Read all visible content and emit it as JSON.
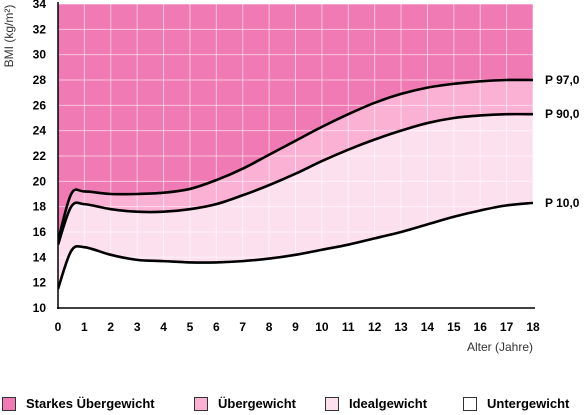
{
  "chart_data": {
    "type": "line",
    "title": "",
    "xlabel": "Alter (Jahre)",
    "ylabel": "BMI (kg/m²)",
    "x": [
      0,
      0.5,
      1,
      2,
      3,
      4,
      5,
      6,
      7,
      8,
      9,
      10,
      11,
      12,
      13,
      14,
      15,
      16,
      17,
      18
    ],
    "xlim": [
      0,
      18
    ],
    "ylim": [
      10,
      34
    ],
    "x_ticks": [
      "0",
      "1",
      "2",
      "3",
      "4",
      "5",
      "6",
      "7",
      "8",
      "9",
      "10",
      "11",
      "12",
      "13",
      "14",
      "15",
      "16",
      "17",
      "18"
    ],
    "y_ticks": [
      "10",
      "12",
      "14",
      "16",
      "18",
      "20",
      "22",
      "24",
      "26",
      "28",
      "30",
      "32",
      "34"
    ],
    "series": [
      {
        "name": "P 97,0",
        "values": [
          15.3,
          19.0,
          19.2,
          19.0,
          19.0,
          19.1,
          19.4,
          20.1,
          21.0,
          22.1,
          23.2,
          24.3,
          25.3,
          26.2,
          26.9,
          27.4,
          27.7,
          27.9,
          28.0,
          28.0
        ],
        "color": "#000000"
      },
      {
        "name": "P 90,0",
        "values": [
          15.0,
          18.0,
          18.2,
          17.8,
          17.6,
          17.6,
          17.8,
          18.2,
          18.9,
          19.7,
          20.6,
          21.6,
          22.5,
          23.3,
          24.0,
          24.6,
          25.0,
          25.2,
          25.3,
          25.3
        ],
        "color": "#000000"
      },
      {
        "name": "P 10,0",
        "values": [
          11.5,
          14.5,
          14.8,
          14.2,
          13.8,
          13.7,
          13.6,
          13.6,
          13.7,
          13.9,
          14.2,
          14.6,
          15.0,
          15.5,
          16.0,
          16.6,
          17.2,
          17.7,
          18.1,
          18.3
        ],
        "color": "#000000"
      }
    ],
    "zones": [
      {
        "name": "Starkes Übergewicht",
        "color": "#f07bb4"
      },
      {
        "name": "Übergewicht",
        "color": "#fab1d3"
      },
      {
        "name": "Idealgewicht",
        "color": "#fde0ee"
      },
      {
        "name": "Untergewicht",
        "color": "#ffffff"
      }
    ],
    "grid": true,
    "legend": "bottom"
  }
}
